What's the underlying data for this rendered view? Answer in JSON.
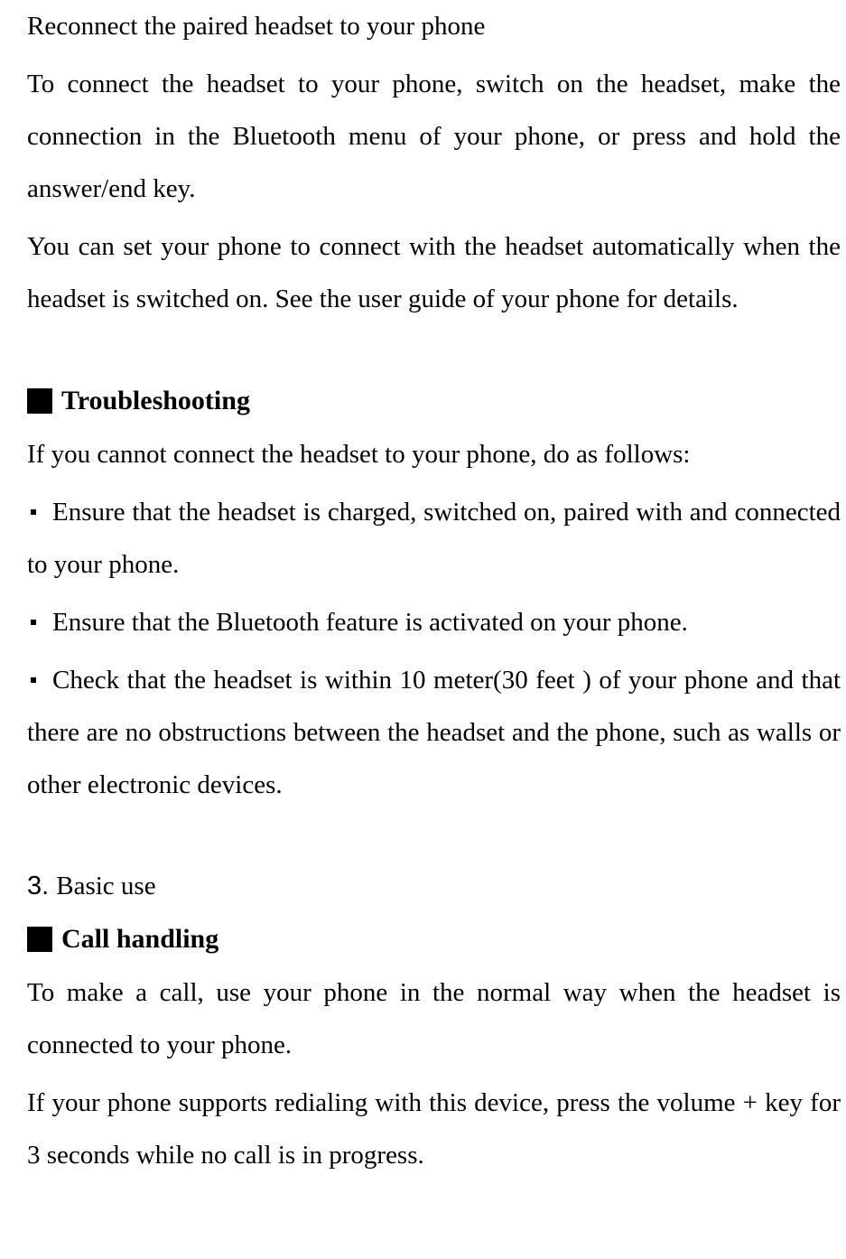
{
  "section1": {
    "subheading": "Reconnect the paired headset to your phone",
    "para1": "To connect the headset to your phone, switch on the headset, make the connection in the Bluetooth menu of your phone, or press and hold the answer/end key.",
    "para2": "You can set your phone to connect with the headset automatically when the headset is switched on. See the user guide of your phone for details."
  },
  "section2": {
    "header": "Troubleshooting",
    "intro": "If you cannot connect the headset to your phone, do as follows:",
    "bullet1": "Ensure that the headset is charged, switched on, paired with and connected to your phone.",
    "bullet2": "Ensure that the Bluetooth feature is activated on your phone.",
    "bullet3": "Check that the headset is within 10 meter(30 feet ) of your phone and that there are no obstructions between the headset and the phone, such as walls or other electronic devices."
  },
  "section3": {
    "number": "3.",
    "title": "Basic use",
    "header": "Call handling",
    "para1": "To make a call, use your phone in the normal way when the headset is connected to your phone.",
    "para2": "If your phone supports redialing with this device, press the volume + key for 3 seconds while no call is in progress."
  },
  "styling": {
    "background_color": "#ffffff",
    "text_color": "#000000",
    "body_fontsize": 29,
    "header_fontsize": 30,
    "font_family": "Times New Roman",
    "line_height": 2.0
  }
}
